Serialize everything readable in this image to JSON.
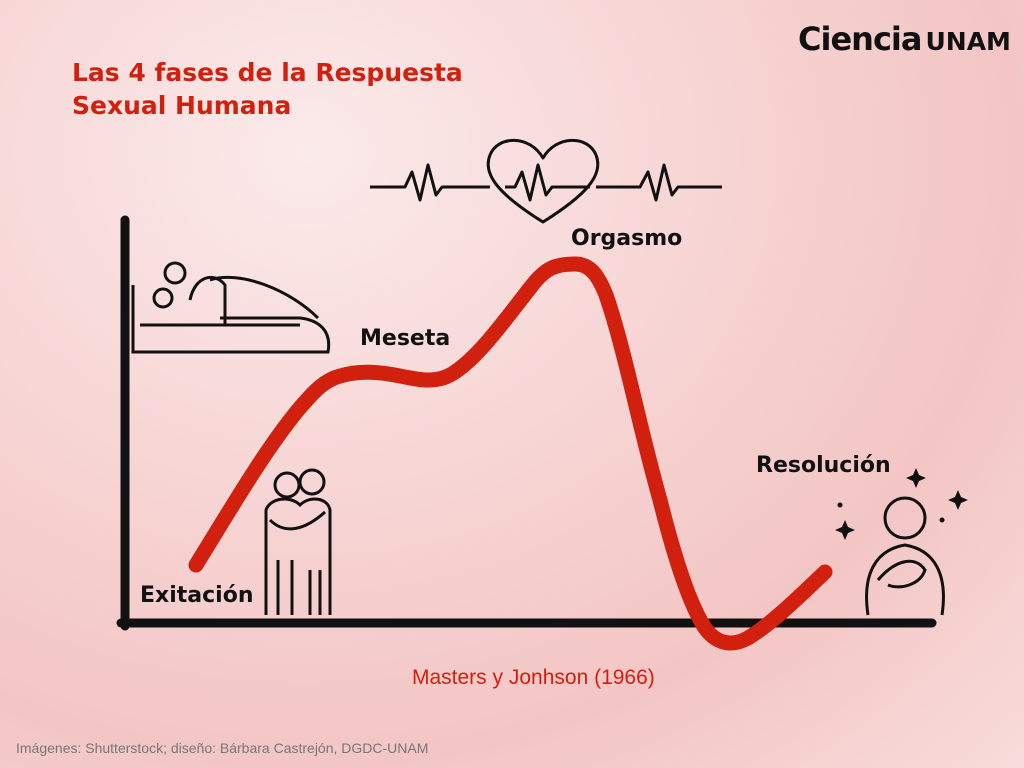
{
  "title_line1": "Las 4 fases de la Respuesta",
  "title_line2": "Sexual Humana",
  "logo": {
    "part1": "Ciencia",
    "part2": "UNAM"
  },
  "phases": {
    "excitation": "Exitación",
    "plateau": "Meseta",
    "orgasm": "Orgasmo",
    "resolution": "Resolución"
  },
  "citation": "Masters y Jonhson (1966)",
  "credit": "Imágenes: Shutterstock; diseño: Bárbara Castrejón, DGDC-UNAM",
  "colors": {
    "accent": "#d2200f",
    "ink": "#111111"
  }
}
